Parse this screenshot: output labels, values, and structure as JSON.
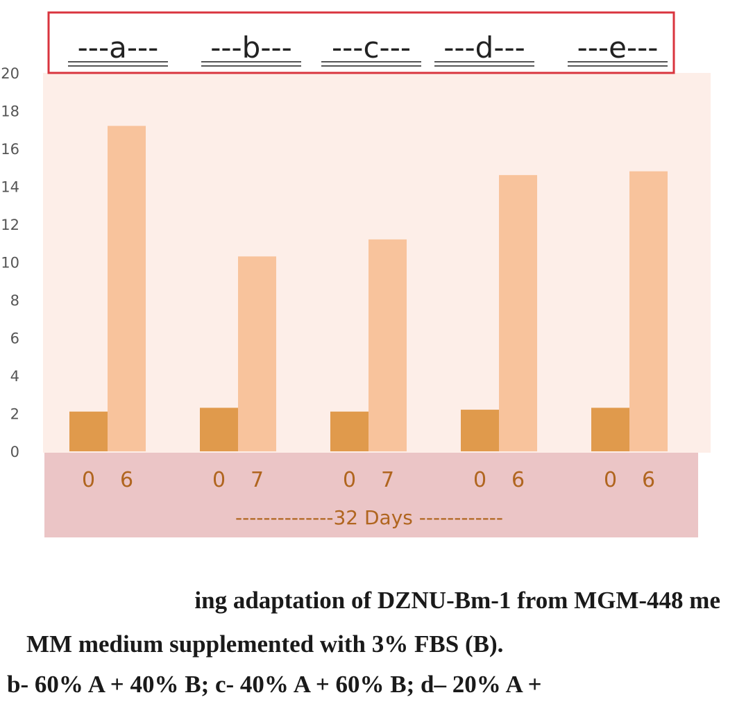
{
  "chart_data": {
    "type": "bar",
    "groups": [
      {
        "label": "---a---",
        "x_ticks": [
          "0",
          "6"
        ],
        "values": [
          2.1,
          17.2
        ]
      },
      {
        "label": "---b---",
        "x_ticks": [
          "0",
          "7"
        ],
        "values": [
          2.3,
          10.3
        ]
      },
      {
        "label": "---c---",
        "x_ticks": [
          "0",
          "7"
        ],
        "values": [
          2.1,
          11.2
        ]
      },
      {
        "label": "---d---",
        "x_ticks": [
          "0",
          "6"
        ],
        "values": [
          2.2,
          14.6
        ]
      },
      {
        "label": "---e---",
        "x_ticks": [
          "0",
          "6"
        ],
        "values": [
          2.3,
          14.8
        ]
      }
    ],
    "y_ticks": [
      "0",
      "2",
      "4",
      "6",
      "8",
      "10",
      "12",
      "14",
      "16",
      "18",
      "20"
    ],
    "ylim": [
      0,
      20
    ],
    "xlabel": "--------------32 Days ------------",
    "colors": {
      "bar_dark": "#e09a4c",
      "bar_light": "#f8c39c",
      "plot_bg": "#fdeee8",
      "axis_band": "#ebc5c6",
      "label_box_border": "#d9343e",
      "tick_text": "#b0651f"
    }
  },
  "caption": {
    "line1": "ing adaptation of DZNU-Bm-1 from MGM-448 me",
    "line2": "MM medium supplemented with 3% FBS (B).",
    "line3": "b- 60% A + 40% B; c- 40% A + 60% B; d– 20% A +"
  }
}
